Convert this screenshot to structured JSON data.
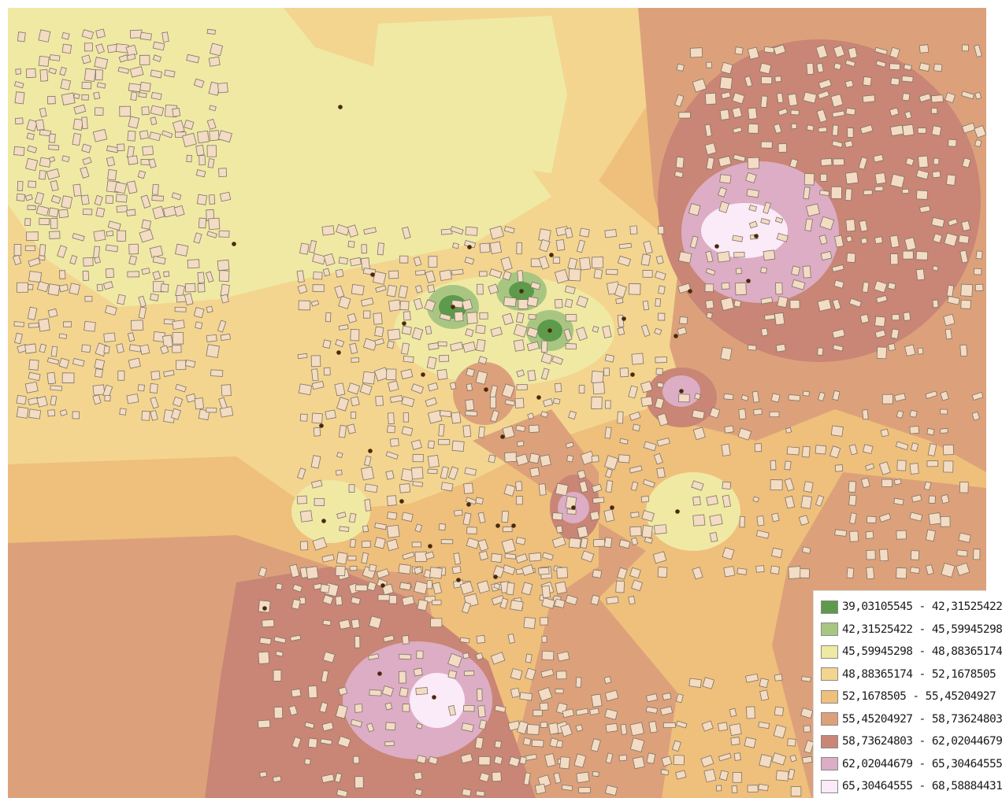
{
  "map": {
    "class_colors": [
      "#5e9a4b",
      "#a8c682",
      "#efe9a4",
      "#f3d58f",
      "#efbf7c",
      "#dca17b",
      "#c98575",
      "#dcadc4",
      "#fbeaf8"
    ],
    "building_fill": "#f3dcc3",
    "building_stroke": "#7d7468",
    "point_color": "#4a2a0a"
  },
  "legend": {
    "items": [
      {
        "label": "39,03105545 - 42,31525422",
        "color": "#5e9a4b"
      },
      {
        "label": "42,31525422 - 45,59945298",
        "color": "#a8c682"
      },
      {
        "label": "45,59945298 - 48,88365174",
        "color": "#efe9a4"
      },
      {
        "label": "48,88365174 - 52,1678505",
        "color": "#f3d58f"
      },
      {
        "label": "52,1678505 - 55,45204927",
        "color": "#efbf7c"
      },
      {
        "label": "55,45204927 - 58,73624803",
        "color": "#dca17b"
      },
      {
        "label": "58,73624803 - 62,02044679",
        "color": "#c98575"
      },
      {
        "label": "62,02044679 - 65,30464555",
        "color": "#dcadc4"
      },
      {
        "label": "65,30464555 - 68,58884431",
        "color": "#fbeaf8"
      }
    ]
  }
}
